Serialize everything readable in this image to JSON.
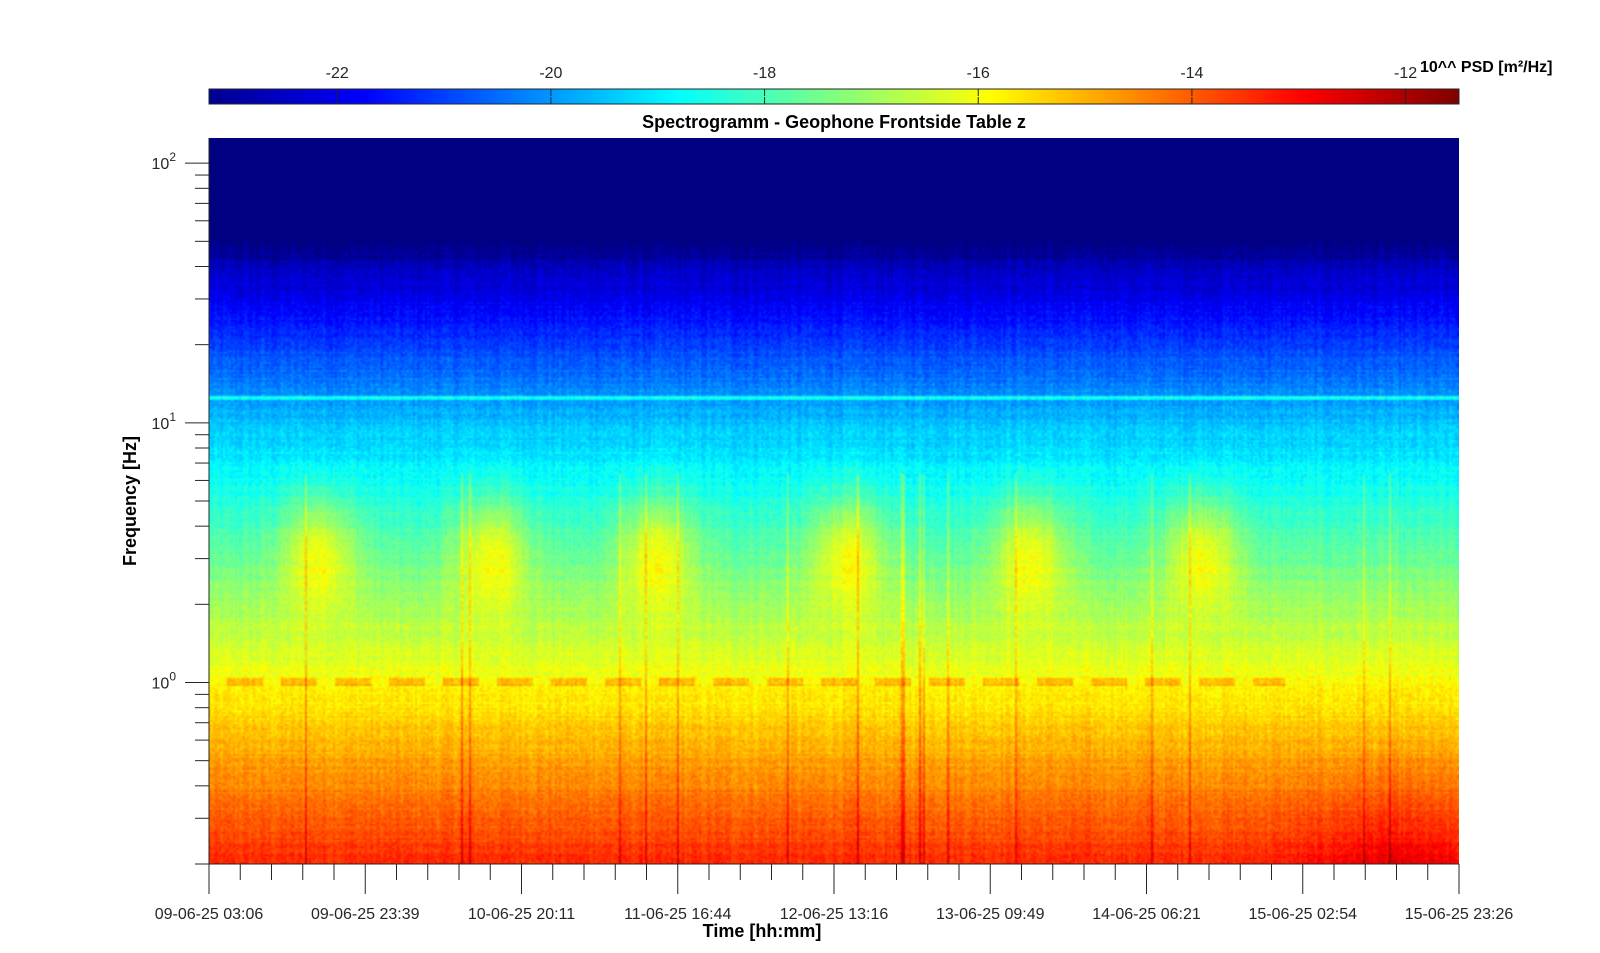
{
  "chart_data": {
    "type": "heatmap",
    "title": "Spectrogramm - Geophone Frontside Table z",
    "xlabel": "Time [hh:mm]",
    "ylabel": "Frequency [Hz]",
    "x_tick_labels": [
      "09-06-25 03:06",
      "09-06-25 23:39",
      "10-06-25 20:11",
      "11-06-25 16:44",
      "12-06-25 13:16",
      "13-06-25 09:49",
      "14-06-25 06:21",
      "15-06-25 02:54",
      "15-06-25 23:26"
    ],
    "xlim": [
      "09-06-25 03:06",
      "15-06-25 23:26"
    ],
    "y_scale": "log",
    "ylim": [
      0.2,
      125
    ],
    "y_ticks": [
      1,
      10,
      100
    ],
    "y_tick_labels": [
      {
        "base": "10",
        "exp": "0"
      },
      {
        "base": "10",
        "exp": "1"
      },
      {
        "base": "10",
        "exp": "2"
      }
    ],
    "colorbar": {
      "label": "10^^ PSD [m²/Hz]",
      "location": "top",
      "colormap": "jet",
      "range": [
        -23.2,
        -11.5
      ],
      "ticks": [
        -22,
        -20,
        -18,
        -16,
        -14,
        -12
      ],
      "tick_labels": [
        "-22",
        "-20",
        "-18",
        "-16",
        "-14",
        "-12"
      ]
    },
    "features": {
      "daily_activity_centers_days": [
        0.6,
        1.55,
        2.45,
        3.5,
        4.5,
        5.45
      ],
      "activity_band_hz": 3.2,
      "persistent_line_hz": 12.5,
      "intermittent_line_hz": 1.0,
      "low_frequency_peak_days": 6.5,
      "colors": {
        "background": "#ffffff",
        "axis": "#262626"
      }
    }
  }
}
